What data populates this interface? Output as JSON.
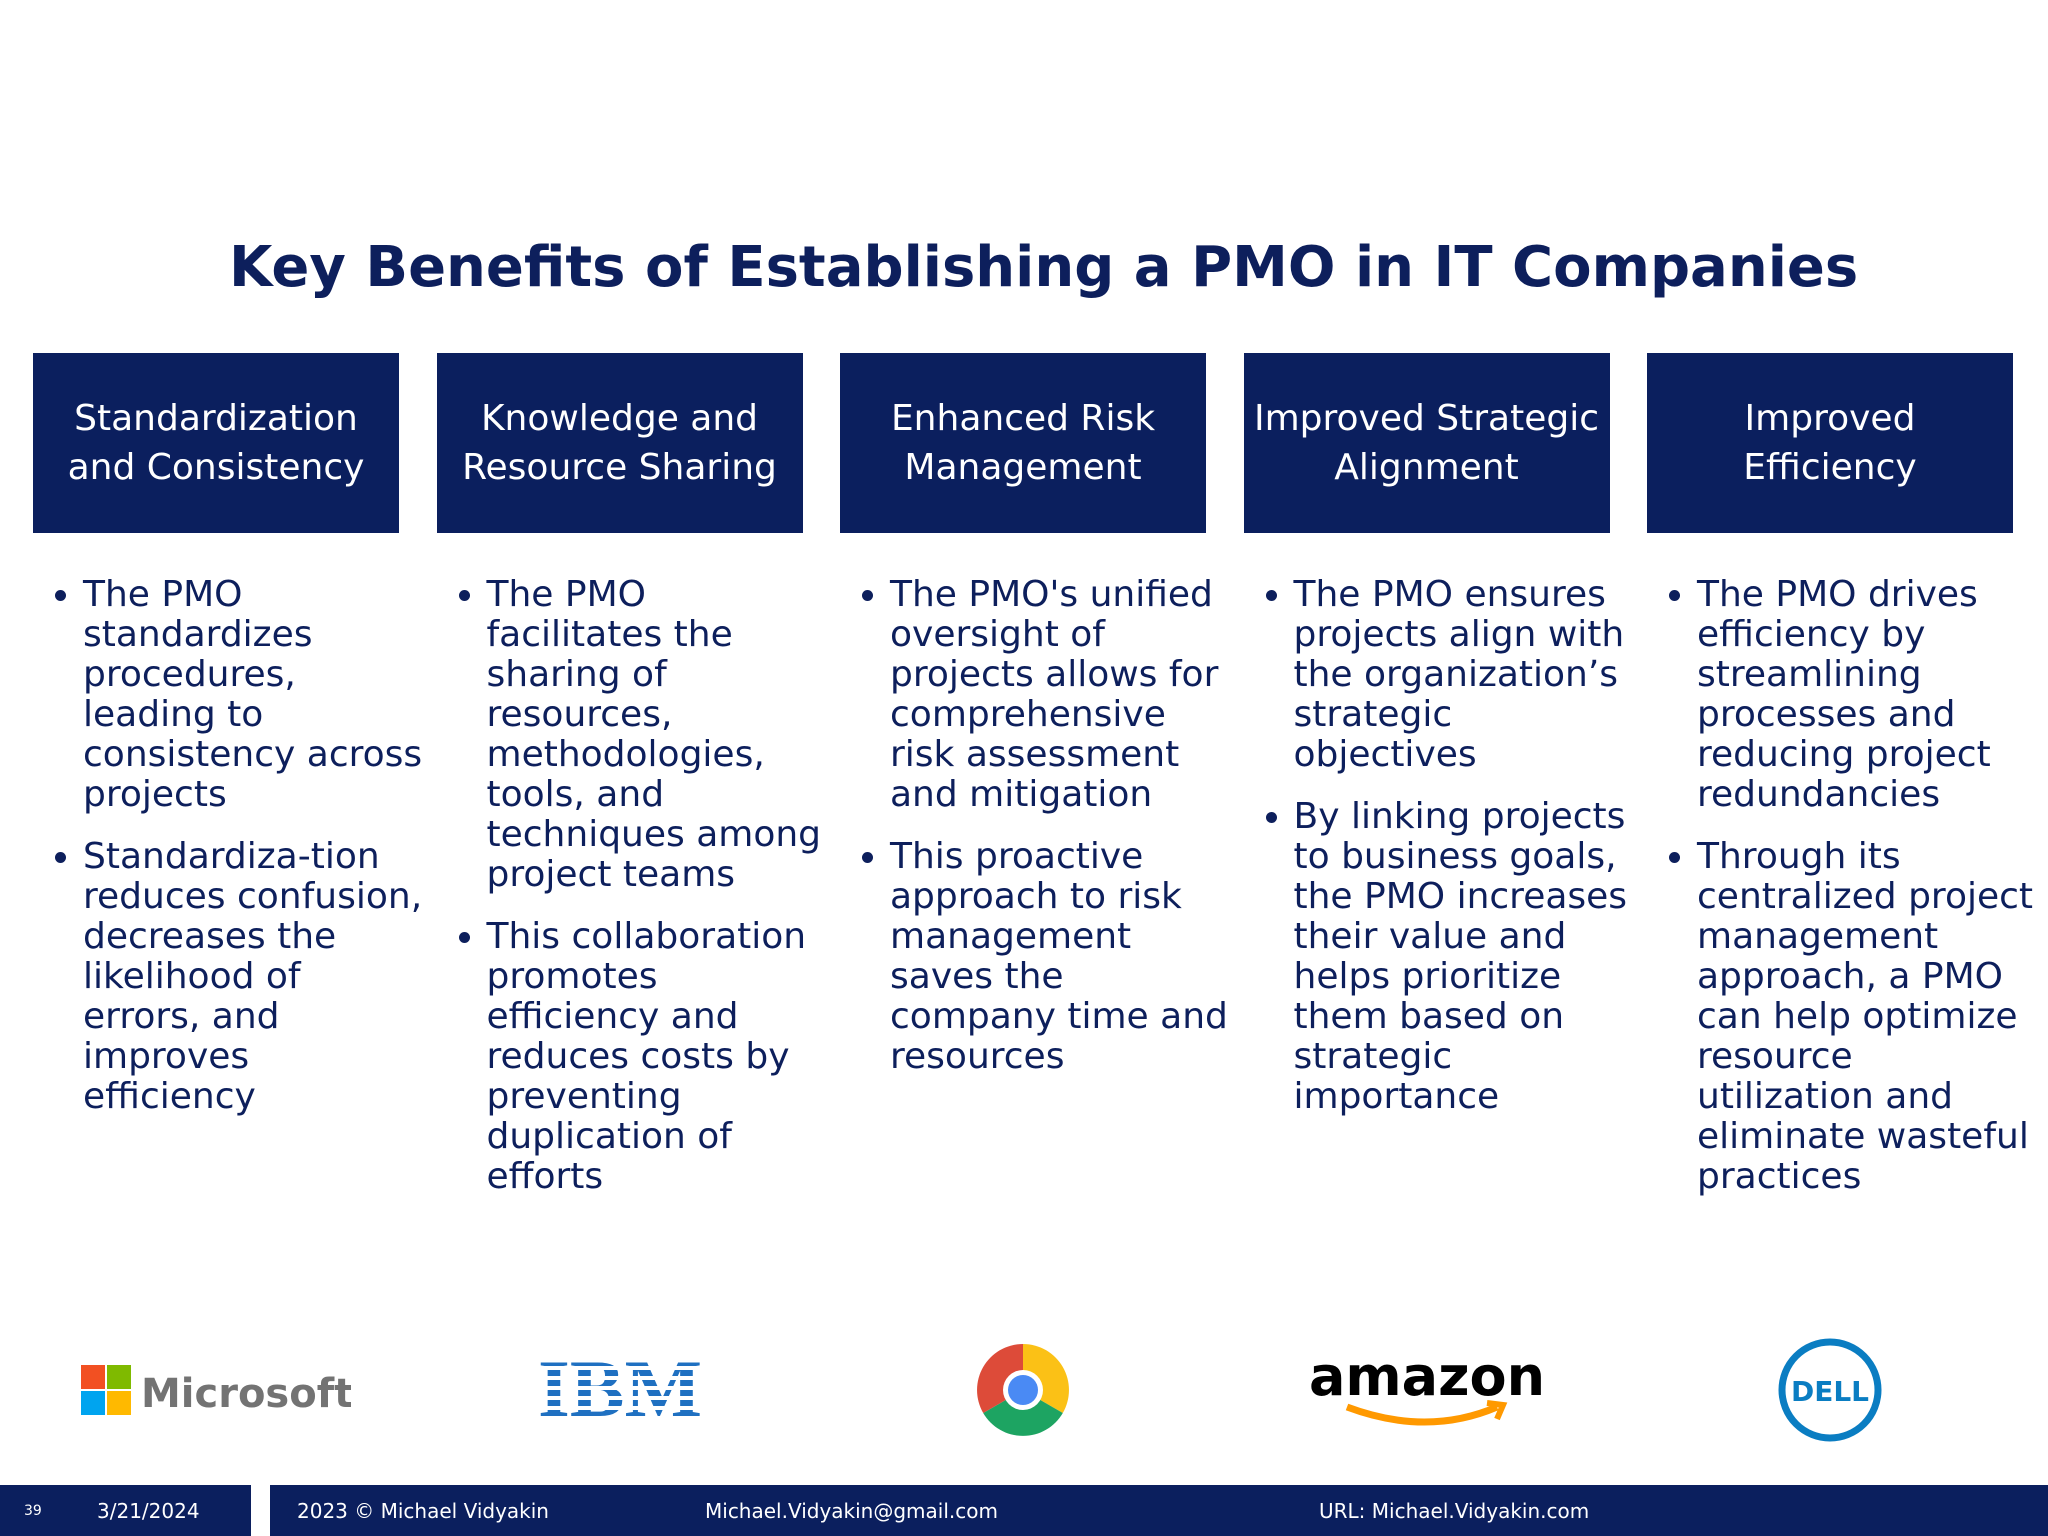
{
  "title": "Key Benefits of Establishing a PMO in IT Companies",
  "columns": [
    {
      "header": "Standardization and Consistency",
      "bullets": [
        "The PMO standardizes procedures, leading to consistency across projects",
        "Standardiza-tion reduces confusion, decreases the likelihood of errors, and improves efficiency"
      ]
    },
    {
      "header": "Knowledge and Resource Sharing",
      "bullets": [
        "The PMO facilitates the sharing of resources, methodologies, tools, and techniques among project teams",
        "This collaboration promotes efficiency and reduces costs by preventing duplication of efforts"
      ]
    },
    {
      "header": "Enhanced Risk Management",
      "bullets": [
        "The PMO's unified oversight of projects allows for comprehensive risk assessment and mitigation",
        "This proactive approach to risk management saves the company time and resources"
      ]
    },
    {
      "header": "Improved Strategic Alignment",
      "bullets": [
        "The PMO ensures projects align with the organization’s strategic objectives",
        "By linking projects to business goals, the PMO increases their value and helps prioritize them based on strategic importance"
      ]
    },
    {
      "header": "Improved Efficiency",
      "bullets": [
        "The PMO drives efficiency by streamlining processes and reducing project redundancies",
        "Through its centralized project management approach, a PMO can help optimize resource utilization and eliminate wasteful practices"
      ]
    }
  ],
  "logos": [
    "Microsoft",
    "IBM",
    "amazon",
    "DELL"
  ],
  "footer": {
    "page": "39",
    "date": "3/21/2024",
    "copyright": "2023 © Michael Vidyakin",
    "email": "Michael.Vidyakin@gmail.com",
    "url": "URL: Michael.Vidyakin.com"
  }
}
